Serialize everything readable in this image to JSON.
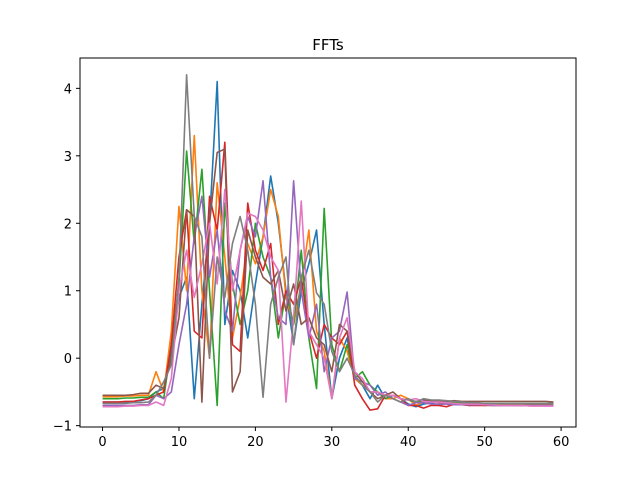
{
  "chart_data": {
    "type": "line",
    "title": "FFTs",
    "xlabel": "",
    "ylabel": "",
    "xlim": [
      -2.95,
      61.95
    ],
    "ylim": [
      -1.02,
      4.45
    ],
    "xticks": [
      0,
      10,
      20,
      30,
      40,
      50,
      60
    ],
    "yticks": [
      -1,
      0,
      1,
      2,
      3,
      4
    ],
    "grid": false,
    "legend": "none",
    "series_note_colors": [
      "#1f77b4",
      "#ff7f0e",
      "#2ca02c",
      "#d62728",
      "#9467bd",
      "#8c564b",
      "#e377c2",
      "#7f7f7f"
    ],
    "series": [
      {
        "color": "#1f77b4",
        "values": [
          -0.65,
          -0.65,
          -0.65,
          -0.65,
          -0.64,
          -0.63,
          -0.6,
          -0.5,
          -0.45,
          0.1,
          0.9,
          1.2,
          -0.6,
          0.8,
          2.0,
          4.1,
          0.5,
          1.3,
          1.0,
          0.3,
          1.1,
          1.8,
          2.7,
          2.0,
          1.0,
          0.2,
          1.0,
          1.4,
          1.9,
          0.5,
          -0.6,
          0.0,
          0.3,
          -0.3,
          -0.4,
          -0.6,
          -0.4,
          -0.6,
          -0.55,
          -0.6,
          -0.68,
          -0.72,
          -0.68,
          -0.66,
          -0.7,
          -0.66,
          -0.69,
          -0.67,
          -0.7,
          -0.68,
          -0.7,
          -0.68,
          -0.7,
          -0.69,
          -0.7,
          -0.7,
          -0.7,
          -0.7,
          -0.69,
          -0.7
        ]
      },
      {
        "color": "#ff7f0e",
        "values": [
          -0.57,
          -0.57,
          -0.57,
          -0.56,
          -0.56,
          -0.55,
          -0.55,
          -0.2,
          -0.5,
          0.4,
          2.25,
          1.0,
          3.3,
          1.0,
          0.0,
          2.6,
          1.5,
          0.3,
          0.9,
          1.7,
          1.4,
          1.8,
          2.5,
          2.1,
          0.9,
          0.5,
          1.1,
          1.9,
          0.4,
          0.1,
          -0.6,
          0.3,
          0.1,
          -0.3,
          -0.4,
          -0.5,
          -0.5,
          -0.6,
          -0.6,
          -0.55,
          -0.6,
          -0.7,
          -0.65,
          -0.63,
          -0.66,
          -0.67,
          -0.66,
          -0.67,
          -0.68,
          -0.67,
          -0.68,
          -0.68,
          -0.69,
          -0.69,
          -0.69,
          -0.69,
          -0.69,
          -0.69,
          -0.69,
          -0.69
        ]
      },
      {
        "color": "#2ca02c",
        "values": [
          -0.6,
          -0.6,
          -0.6,
          -0.59,
          -0.59,
          -0.58,
          -0.58,
          -0.5,
          -0.6,
          0.2,
          1.1,
          3.07,
          1.7,
          2.8,
          1.0,
          -0.7,
          2.3,
          1.1,
          0.5,
          1.0,
          2.0,
          1.5,
          1.2,
          0.3,
          1.0,
          0.5,
          1.6,
          0.3,
          -0.45,
          2.22,
          0.2,
          -0.2,
          0.2,
          -0.3,
          -0.2,
          -0.4,
          -0.5,
          -0.6,
          -0.55,
          -0.6,
          -0.62,
          -0.65,
          -0.63,
          -0.63,
          -0.65,
          -0.66,
          -0.66,
          -0.67,
          -0.67,
          -0.67,
          -0.67,
          -0.67,
          -0.67,
          -0.67,
          -0.67,
          -0.67,
          -0.67,
          -0.67,
          -0.67,
          -0.67
        ]
      },
      {
        "color": "#d62728",
        "values": [
          -0.65,
          -0.65,
          -0.65,
          -0.64,
          -0.64,
          -0.62,
          -0.6,
          -0.55,
          -0.5,
          0.2,
          1.5,
          2.2,
          0.4,
          0.3,
          2.4,
          1.9,
          3.2,
          0.2,
          0.1,
          2.3,
          1.6,
          1.3,
          1.7,
          0.5,
          1.0,
          0.8,
          1.2,
          0.4,
          0.0,
          0.5,
          0.3,
          0.2,
          0.4,
          -0.4,
          -0.6,
          -0.77,
          -0.75,
          -0.55,
          -0.55,
          -0.6,
          -0.7,
          -0.7,
          -0.74,
          -0.7,
          -0.7,
          -0.72,
          -0.68,
          -0.69,
          -0.7,
          -0.7,
          -0.7,
          -0.7,
          -0.7,
          -0.7,
          -0.7,
          -0.7,
          -0.7,
          -0.7,
          -0.7,
          -0.7
        ]
      },
      {
        "color": "#9467bd",
        "values": [
          -0.7,
          -0.7,
          -0.7,
          -0.7,
          -0.7,
          -0.69,
          -0.69,
          -0.55,
          -0.6,
          -0.5,
          0.2,
          0.8,
          1.8,
          2.4,
          1.2,
          1.9,
          0.7,
          0.4,
          1.6,
          2.1,
          1.8,
          2.63,
          1.2,
          0.6,
          0.5,
          2.63,
          1.0,
          0.3,
          0.8,
          -0.2,
          0.3,
          0.4,
          0.98,
          -0.3,
          -0.35,
          -0.4,
          -0.55,
          -0.5,
          -0.6,
          -0.65,
          -0.7,
          -0.66,
          -0.66,
          -0.68,
          -0.68,
          -0.68,
          -0.69,
          -0.69,
          -0.69,
          -0.69,
          -0.69,
          -0.7,
          -0.7,
          -0.7,
          -0.7,
          -0.7,
          -0.7,
          -0.7,
          -0.7,
          -0.7
        ]
      },
      {
        "color": "#8c564b",
        "values": [
          -0.55,
          -0.55,
          -0.55,
          -0.55,
          -0.54,
          -0.52,
          -0.52,
          -0.4,
          -0.45,
          0.0,
          0.6,
          2.2,
          2.1,
          -0.65,
          2.0,
          3.05,
          3.1,
          -0.5,
          -0.2,
          1.9,
          1.5,
          1.2,
          1.1,
          1.3,
          0.7,
          1.1,
          0.5,
          0.6,
          0.3,
          0.2,
          -0.2,
          0.5,
          0.4,
          -0.2,
          -0.35,
          -0.5,
          -0.6,
          -0.55,
          -0.5,
          -0.6,
          -0.62,
          -0.64,
          -0.62,
          -0.63,
          -0.64,
          -0.64,
          -0.63,
          -0.64,
          -0.64,
          -0.64,
          -0.64,
          -0.64,
          -0.64,
          -0.64,
          -0.64,
          -0.64,
          -0.64,
          -0.64,
          -0.64,
          -0.65
        ]
      },
      {
        "color": "#e377c2",
        "values": [
          -0.72,
          -0.72,
          -0.72,
          -0.71,
          -0.71,
          -0.7,
          -0.7,
          -0.65,
          -0.7,
          -0.3,
          1.0,
          1.6,
          0.9,
          1.4,
          2.0,
          1.1,
          2.5,
          1.0,
          1.6,
          2.15,
          2.1,
          1.9,
          1.5,
          1.3,
          -0.65,
          0.6,
          2.33,
          0.4,
          0.2,
          0.0,
          -0.6,
          0.3,
          0.6,
          -0.2,
          -0.3,
          -0.5,
          -0.5,
          -0.55,
          -0.55,
          -0.6,
          -0.62,
          -0.6,
          -0.64,
          -0.65,
          -0.65,
          -0.66,
          -0.67,
          -0.68,
          -0.68,
          -0.68,
          -0.69,
          -0.69,
          -0.7,
          -0.7,
          -0.7,
          -0.7,
          -0.71,
          -0.71,
          -0.71,
          -0.71
        ]
      },
      {
        "color": "#7f7f7f",
        "values": [
          -0.67,
          -0.67,
          -0.67,
          -0.67,
          -0.66,
          -0.66,
          -0.65,
          -0.55,
          -0.35,
          -0.1,
          1.2,
          4.2,
          2.1,
          1.8,
          0.0,
          1.5,
          0.9,
          1.7,
          2.1,
          1.6,
          0.8,
          -0.58,
          0.8,
          1.2,
          1.5,
          0.2,
          1.2,
          1.6,
          0.97,
          0.8,
          0.1,
          -0.2,
          0.0,
          -0.25,
          -0.4,
          -0.5,
          -0.65,
          -0.55,
          -0.6,
          -0.65,
          -0.6,
          -0.65,
          -0.6,
          -0.62,
          -0.62,
          -0.63,
          -0.64,
          -0.65,
          -0.66,
          -0.66,
          -0.67,
          -0.67,
          -0.67,
          -0.67,
          -0.67,
          -0.67,
          -0.67,
          -0.67,
          -0.67,
          -0.67
        ]
      }
    ]
  }
}
